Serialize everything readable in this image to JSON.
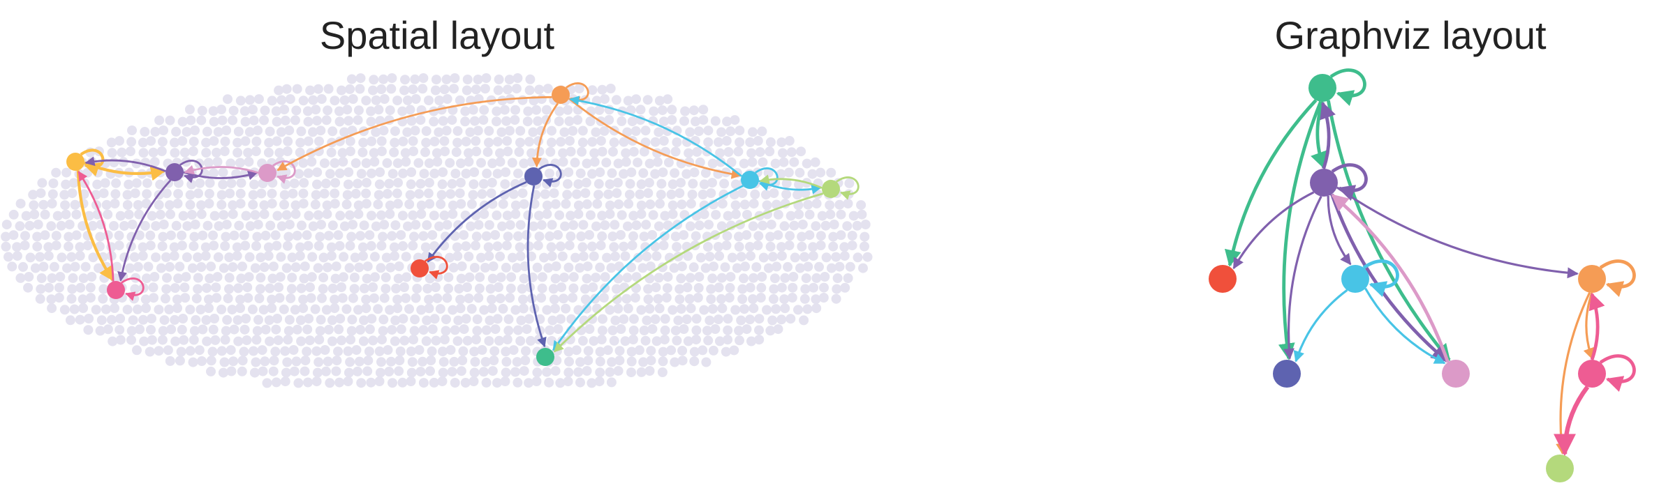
{
  "titles": {
    "left": "Spatial layout",
    "right": "Graphviz layout"
  },
  "colors": {
    "embryo_cells": "#e4e2ef",
    "yellow": "#fbbd44",
    "purple": "#8060ad",
    "pink": "#dc9ac8",
    "orange": "#f59c55",
    "navy": "#5e63b0",
    "red": "#f0503b",
    "cyan": "#48c4e6",
    "lime": "#b4d97c",
    "green": "#3ebd8c",
    "magenta": "#ee5c93"
  },
  "nodes": [
    "yellow",
    "purple",
    "pink",
    "orange",
    "navy",
    "red",
    "cyan",
    "lime",
    "green",
    "magenta"
  ],
  "edges": [
    {
      "from": "yellow",
      "to": "yellow",
      "weight": 3
    },
    {
      "from": "yellow",
      "to": "purple",
      "weight": 3
    },
    {
      "from": "yellow",
      "to": "magenta",
      "weight": 3
    },
    {
      "from": "purple",
      "to": "purple",
      "weight": 2
    },
    {
      "from": "purple",
      "to": "pink",
      "weight": 2
    },
    {
      "from": "purple",
      "to": "yellow",
      "weight": 2
    },
    {
      "from": "purple",
      "to": "magenta",
      "weight": 2
    },
    {
      "from": "pink",
      "to": "pink",
      "weight": 2
    },
    {
      "from": "pink",
      "to": "purple",
      "weight": 2
    },
    {
      "from": "orange",
      "to": "orange",
      "weight": 2
    },
    {
      "from": "orange",
      "to": "pink",
      "weight": 2
    },
    {
      "from": "orange",
      "to": "navy",
      "weight": 2
    },
    {
      "from": "orange",
      "to": "cyan",
      "weight": 2
    },
    {
      "from": "cyan",
      "to": "orange",
      "weight": 2
    },
    {
      "from": "navy",
      "to": "navy",
      "weight": 2
    },
    {
      "from": "navy",
      "to": "red",
      "weight": 2
    },
    {
      "from": "navy",
      "to": "green",
      "weight": 2
    },
    {
      "from": "red",
      "to": "red",
      "weight": 2
    },
    {
      "from": "cyan",
      "to": "cyan",
      "weight": 2
    },
    {
      "from": "cyan",
      "to": "lime",
      "weight": 2
    },
    {
      "from": "cyan",
      "to": "green",
      "weight": 2
    },
    {
      "from": "lime",
      "to": "lime",
      "weight": 2
    },
    {
      "from": "lime",
      "to": "cyan",
      "weight": 2
    },
    {
      "from": "lime",
      "to": "green",
      "weight": 2
    },
    {
      "from": "magenta",
      "to": "magenta",
      "weight": 2
    },
    {
      "from": "magenta",
      "to": "yellow",
      "weight": 2
    }
  ],
  "graphviz_edges": [
    {
      "from": "green",
      "to": "green",
      "weight": 3
    },
    {
      "from": "green",
      "to": "purple",
      "weight": 3
    },
    {
      "from": "green",
      "to": "red",
      "weight": 3
    },
    {
      "from": "green",
      "to": "pink",
      "weight": 3
    },
    {
      "from": "green",
      "to": "navy",
      "weight": 3
    },
    {
      "from": "purple",
      "to": "purple",
      "weight": 3
    },
    {
      "from": "purple",
      "to": "green",
      "weight": 3
    },
    {
      "from": "purple",
      "to": "red",
      "weight": 2
    },
    {
      "from": "purple",
      "to": "navy",
      "weight": 2
    },
    {
      "from": "purple",
      "to": "cyan",
      "weight": 2
    },
    {
      "from": "purple",
      "to": "pink",
      "weight": 3
    },
    {
      "from": "purple",
      "to": "orange",
      "weight": 2
    },
    {
      "from": "cyan",
      "to": "cyan",
      "weight": 3
    },
    {
      "from": "cyan",
      "to": "navy",
      "weight": 2
    },
    {
      "from": "cyan",
      "to": "pink",
      "weight": 2
    },
    {
      "from": "pink",
      "to": "purple",
      "weight": 3
    },
    {
      "from": "orange",
      "to": "orange",
      "weight": 3
    },
    {
      "from": "orange",
      "to": "magenta",
      "weight": 2
    },
    {
      "from": "orange",
      "to": "lime",
      "weight": 2
    },
    {
      "from": "magenta",
      "to": "magenta",
      "weight": 3
    },
    {
      "from": "magenta",
      "to": "orange",
      "weight": 3
    },
    {
      "from": "magenta",
      "to": "lime",
      "weight": 4
    }
  ]
}
